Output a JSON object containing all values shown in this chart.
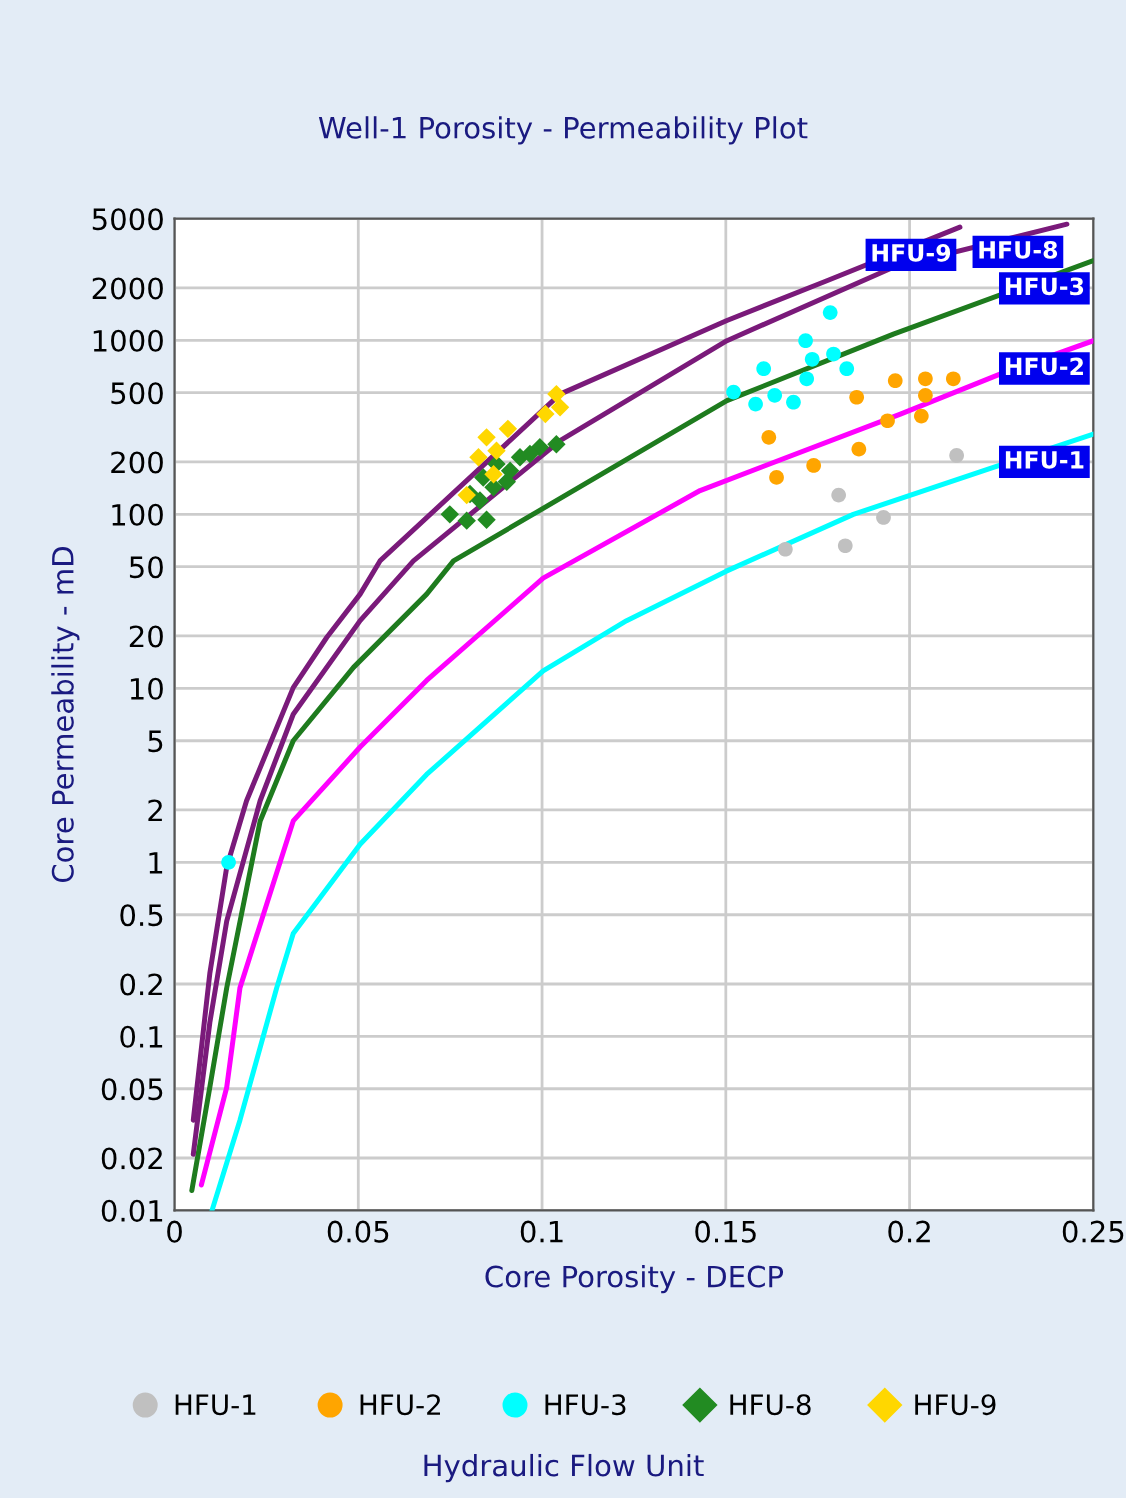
{
  "chart_data": {
    "type": "scatter",
    "title": "Well-1 Porosity - Permeability Plot",
    "xlabel": "Core Porosity - DECP",
    "ylabel": "Core Permeability - mD",
    "legend_title": "Hydraulic Flow Unit",
    "log": "y",
    "grid": true,
    "legend": "bottom",
    "xlim": [
      0,
      0.25
    ],
    "xticks": [
      0,
      0.05,
      0.1,
      0.15,
      0.2,
      0.25
    ],
    "ylim": [
      0.01,
      5000
    ],
    "yticks": [
      0.01,
      0.02,
      0.05,
      0.1,
      0.2,
      0.5,
      1,
      2,
      5,
      10,
      20,
      50,
      100,
      200,
      500,
      1000,
      2000,
      5000
    ],
    "series": [
      {
        "name": "HFU-1",
        "marker": "circle",
        "color": "#c0c0c0",
        "x": [
          0.2128,
          0.1807,
          0.1929,
          0.1662,
          0.1825
        ],
        "values": [
          218,
          129,
          96,
          63,
          66
        ]
      },
      {
        "name": "HFU-2",
        "marker": "circle",
        "color": "#ffa500",
        "x": [
          0.1617,
          0.1638,
          0.1739,
          0.1856,
          0.1862,
          0.194,
          0.1961,
          0.2043,
          0.2043,
          0.2032,
          0.2119
        ],
        "values": [
          277,
          163,
          191,
          471,
          237,
          345,
          586,
          601,
          483,
          367,
          601
        ]
      },
      {
        "name": "HFU-3",
        "marker": "circle",
        "color": "#00ffff",
        "x": [
          0.1784,
          0.1717,
          0.1735,
          0.1793,
          0.1603,
          0.172,
          0.1829,
          0.1521,
          0.1581,
          0.1633,
          0.1684,
          0.0147
        ],
        "values": [
          1443,
          995,
          778,
          834,
          687,
          601,
          687,
          504,
          430,
          483,
          441,
          1
        ]
      },
      {
        "name": "HFU-8",
        "marker": "diamond",
        "color": "#228b22",
        "x": [
          0.0749,
          0.0795,
          0.0849,
          0.0831,
          0.0868,
          0.0904,
          0.094,
          0.0994,
          0.1039,
          0.0876,
          0.084,
          0.0804,
          0.0913,
          0.0967
        ],
        "values": [
          100,
          92,
          93,
          120,
          143,
          154,
          213,
          243,
          253,
          195,
          163,
          131,
          178,
          222
        ]
      },
      {
        "name": "HFU-9",
        "marker": "diamond",
        "color": "#ffd700",
        "x": [
          0.0849,
          0.0907,
          0.0827,
          0.0876,
          0.1039,
          0.1049,
          0.1009,
          0.0795,
          0.0868
        ],
        "values": [
          277,
          310,
          213,
          232,
          491,
          412,
          377,
          129,
          170
        ]
      },
      {
        "name": "HFU-1",
        "type": "line",
        "marker": "none",
        "color": "#00ffff",
        "x": [
          0.0102,
          0.0178,
          0.0278,
          0.0323,
          0.0505,
          0.0686,
          0.1003,
          0.123,
          0.15,
          0.1847,
          0.2228,
          0.25
        ],
        "values": [
          0.01,
          0.033,
          0.19,
          0.39,
          1.27,
          3.2,
          12.6,
          24.5,
          47,
          100,
          186,
          289
        ]
      },
      {
        "name": "HFU-2",
        "type": "line",
        "marker": "none",
        "color": "#ff00ff",
        "x": [
          0.0073,
          0.0142,
          0.0178,
          0.0323,
          0.0505,
          0.0686,
          0.1003,
          0.143,
          0.1975,
          0.2246,
          0.25
        ],
        "values": [
          0.014,
          0.051,
          0.19,
          1.73,
          4.6,
          11.1,
          43,
          137,
          377,
          640,
          995
        ]
      },
      {
        "name": "HFU-3",
        "type": "line",
        "marker": "none",
        "color": "#1e7b1e",
        "x": [
          0.0047,
          0.0096,
          0.0142,
          0.0233,
          0.0323,
          0.0487,
          0.0686,
          0.0759,
          0.1503,
          0.1956,
          0.25
        ],
        "values": [
          0.013,
          0.051,
          0.19,
          1.73,
          5.0,
          13.2,
          34.8,
          54,
          450,
          1086,
          2870
        ]
      },
      {
        "name": "HFU-8",
        "type": "line",
        "marker": "none",
        "color": "#7a1a7a",
        "x": [
          0.0051,
          0.0096,
          0.0142,
          0.0233,
          0.0323,
          0.0505,
          0.065,
          0.1049,
          0.1503,
          0.1956,
          0.2428
        ],
        "values": [
          0.021,
          0.12,
          0.46,
          2.26,
          7.1,
          24.5,
          54,
          265,
          995,
          2630,
          4650
        ]
      },
      {
        "name": "HFU-9",
        "type": "line",
        "marker": "none",
        "color": "#7a1a7a",
        "x": [
          0.0051,
          0.0096,
          0.0142,
          0.0196,
          0.0323,
          0.0414,
          0.0505,
          0.0559,
          0.1049,
          0.1503,
          0.1775,
          0.2137
        ],
        "values": [
          0.033,
          0.23,
          0.94,
          2.26,
          10.1,
          19.6,
          34.8,
          54,
          491,
          1300,
          2200,
          4470
        ]
      }
    ]
  }
}
